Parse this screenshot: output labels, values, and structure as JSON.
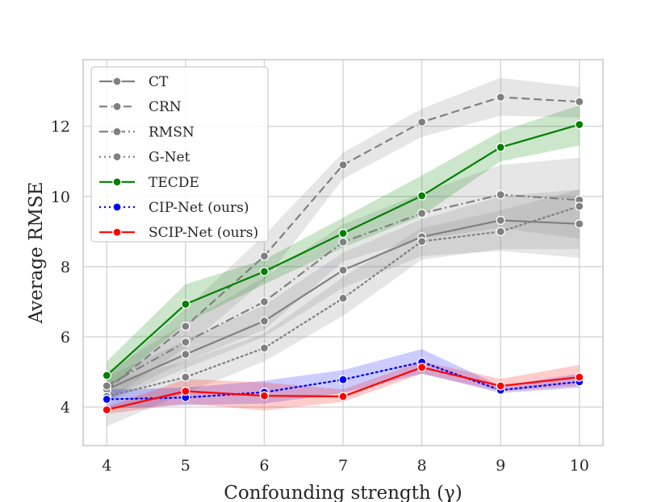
{
  "chart_data": {
    "type": "line",
    "title": "",
    "xlabel": "Confounding strength (γ)",
    "ylabel": "Average RMSE",
    "x": [
      4,
      5,
      6,
      7,
      8,
      9,
      10
    ],
    "xlim": [
      3.7,
      10.3
    ],
    "ylim": [
      2.9,
      13.9
    ],
    "xticks": [
      "4",
      "5",
      "6",
      "7",
      "8",
      "9",
      "10"
    ],
    "yticks": [
      "4",
      "6",
      "8",
      "10",
      "12"
    ],
    "grid": true,
    "legend_position": "top-left",
    "series": [
      {
        "name": "CT",
        "color": "#808080",
        "dash": "solid",
        "values": [
          4.5,
          5.5,
          6.45,
          7.9,
          8.85,
          9.32,
          9.22
        ],
        "lower": [
          4.15,
          5.1,
          6.0,
          7.4,
          8.3,
          8.45,
          8.25
        ],
        "upper": [
          4.85,
          5.9,
          6.9,
          8.4,
          9.35,
          10.0,
          10.2
        ]
      },
      {
        "name": "CRN",
        "color": "#808080",
        "dash": "dashed",
        "values": [
          4.5,
          6.3,
          8.3,
          10.9,
          12.12,
          12.83,
          12.7
        ],
        "lower": [
          4.15,
          5.7,
          7.6,
          10.5,
          11.7,
          12.3,
          12.25
        ],
        "upper": [
          4.85,
          6.8,
          8.9,
          11.25,
          12.5,
          13.38,
          13.12
        ]
      },
      {
        "name": "RMSN",
        "color": "#808080",
        "dash": "dashdot",
        "values": [
          4.6,
          5.85,
          7.0,
          8.7,
          9.52,
          10.05,
          9.9
        ],
        "lower": [
          4.2,
          5.3,
          6.2,
          8.15,
          8.8,
          9.1,
          8.8
        ],
        "upper": [
          5.0,
          6.4,
          7.7,
          9.2,
          10.1,
          10.9,
          11.1
        ]
      },
      {
        "name": "G-Net",
        "color": "#808080",
        "dash": "dotted",
        "values": [
          4.3,
          4.85,
          5.68,
          7.1,
          8.72,
          9.0,
          9.72
        ],
        "lower": [
          3.45,
          4.4,
          5.3,
          6.6,
          8.2,
          8.5,
          8.5
        ],
        "upper": [
          4.7,
          5.3,
          6.1,
          7.7,
          9.1,
          9.6,
          10.2
        ]
      },
      {
        "name": "TECDE",
        "color": "#008000",
        "dash": "solid",
        "values": [
          4.9,
          6.93,
          7.86,
          8.95,
          10.02,
          11.4,
          12.05
        ],
        "lower": [
          4.5,
          6.4,
          7.5,
          8.55,
          9.45,
          11.0,
          11.45
        ],
        "upper": [
          5.3,
          7.5,
          8.2,
          9.4,
          10.6,
          11.85,
          12.6
        ]
      },
      {
        "name": "CIP-Net (ours)",
        "color": "#0000ff",
        "dash": "dotted",
        "values": [
          4.22,
          4.27,
          4.42,
          4.78,
          5.28,
          4.48,
          4.72
        ],
        "lower": [
          3.95,
          4.05,
          4.1,
          4.4,
          4.95,
          4.4,
          4.55
        ],
        "upper": [
          4.5,
          4.55,
          4.75,
          5.05,
          5.65,
          4.6,
          4.95
        ]
      },
      {
        "name": "SCIP-Net (ours)",
        "color": "#ff0000",
        "dash": "solid",
        "values": [
          3.92,
          4.45,
          4.32,
          4.3,
          5.13,
          4.6,
          4.85
        ],
        "lower": [
          3.8,
          4.1,
          3.9,
          4.15,
          4.95,
          4.45,
          4.6
        ],
        "upper": [
          4.0,
          4.8,
          4.7,
          4.5,
          5.3,
          4.8,
          5.2
        ]
      }
    ]
  }
}
